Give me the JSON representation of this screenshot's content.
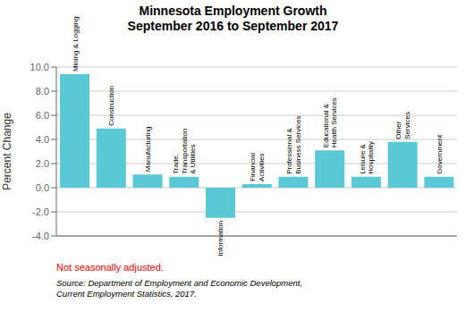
{
  "chart_data": {
    "type": "bar",
    "title": "Minnesota Employment Growth\nSeptember 2016 to September 2017",
    "categories": [
      "Mining & Logging",
      "Construction",
      "Manufacturing",
      "Trade,\nTransportation\n& Utilities",
      "Information",
      "Financial\nActivities",
      "Professional &\nBusiness Services",
      "Educational &\nHealth Services",
      "Leisure &\nHospitality",
      "Other\nServices",
      "Government"
    ],
    "values": [
      9.4,
      4.9,
      1.1,
      0.9,
      -2.5,
      0.3,
      0.9,
      3.1,
      0.9,
      3.8,
      0.9
    ],
    "color": "#5BC8D5",
    "ylabel": "Percent Change",
    "ylim": [
      -4.0,
      10.0
    ],
    "yticks": [
      {
        "value": -4,
        "label": "-4.0"
      },
      {
        "value": -2,
        "label": "-2.0"
      },
      {
        "value": 0,
        "label": "0.0"
      },
      {
        "value": 2,
        "label": "2.0"
      },
      {
        "value": 4,
        "label": "4.0"
      },
      {
        "value": 6,
        "label": "6.0"
      },
      {
        "value": 8,
        "label": "8.0"
      },
      {
        "value": 10,
        "label": "10.0"
      }
    ],
    "grid": true,
    "tick_labels": "y",
    "annotations": [
      {
        "text": "Not seasonally adjusted.",
        "color": "#FF0000"
      }
    ],
    "source": "Source: Department of Employment and Economic Development,\nCurrent Employment Statistics, 2017."
  }
}
